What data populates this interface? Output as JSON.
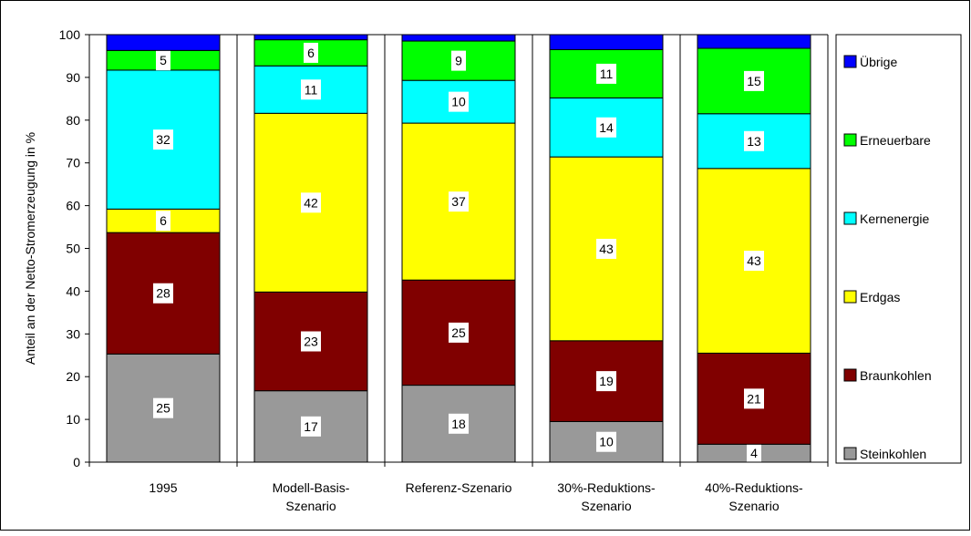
{
  "chart_data": {
    "type": "bar",
    "stacked": true,
    "categories": [
      [
        "1995"
      ],
      [
        "Modell-Basis-",
        "Szenario"
      ],
      [
        "Referenz-Szenario"
      ],
      [
        "30%-Reduktions-",
        "Szenario"
      ],
      [
        "40%-Reduktions-",
        "Szenario"
      ]
    ],
    "ylabel": "Anteil an der Netto-Stromerzeugung in %",
    "ylim": [
      0,
      100
    ],
    "yticks": [
      0,
      10,
      20,
      30,
      40,
      50,
      60,
      70,
      80,
      90,
      100
    ],
    "grid": false,
    "legend_position": "right",
    "series": [
      {
        "name": "Steinkohlen",
        "color": "#999999",
        "values": [
          25.3,
          16.7,
          18.0,
          9.5,
          4.2
        ],
        "labels": [
          "25",
          "17",
          "18",
          "10",
          "4"
        ]
      },
      {
        "name": "Braunkohlen",
        "color": "#800000",
        "values": [
          28.4,
          23.1,
          24.6,
          18.9,
          21.3
        ],
        "labels": [
          "28",
          "23",
          "25",
          "19",
          "21"
        ]
      },
      {
        "name": "Erdgas",
        "color": "#ffff00",
        "values": [
          5.5,
          41.8,
          36.7,
          43.0,
          43.2
        ],
        "labels": [
          "6",
          "42",
          "37",
          "43",
          "43"
        ]
      },
      {
        "name": "Kernenergie",
        "color": "#00ffff",
        "values": [
          32.5,
          11.1,
          10.0,
          13.8,
          12.8
        ],
        "labels": [
          "32",
          "11",
          "10",
          "14",
          "13"
        ]
      },
      {
        "name": "Erneuerbare",
        "color": "#00ff00",
        "values": [
          4.6,
          6.1,
          9.2,
          11.3,
          15.3
        ],
        "labels": [
          "5",
          "6",
          "9",
          "11",
          "15"
        ]
      },
      {
        "name": "Übrige",
        "color": "#0000ff",
        "values": [
          3.7,
          1.2,
          1.5,
          3.5,
          3.2
        ],
        "labels": []
      }
    ],
    "legend_order": [
      "Übrige",
      "Erneuerbare",
      "Kernenergie",
      "Erdgas",
      "Braunkohlen",
      "Steinkohlen"
    ]
  }
}
